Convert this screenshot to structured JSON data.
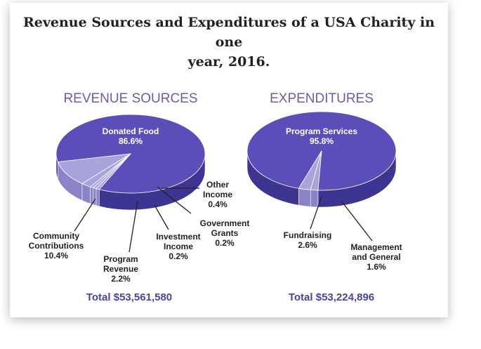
{
  "title_line1": "Revenue Sources and Expenditures of a USA Charity in one",
  "title_line2": "year, 2016.",
  "chart_data": [
    {
      "type": "pie",
      "title": "REVENUE SOURCES",
      "total": "Total $53,561,580",
      "slices": [
        {
          "name_lines": [
            "Donated Food"
          ],
          "value_text": "86.6%",
          "value": 86.6
        },
        {
          "name_lines": [
            "Community",
            "Contributions"
          ],
          "value_text": "10.4%",
          "value": 10.4
        },
        {
          "name_lines": [
            "Program",
            "Revenue"
          ],
          "value_text": "2.2%",
          "value": 2.2
        },
        {
          "name_lines": [
            "Investment",
            "Income"
          ],
          "value_text": "0.2%",
          "value": 0.2
        },
        {
          "name_lines": [
            "Government",
            "Grants"
          ],
          "value_text": "0.2%",
          "value": 0.2
        },
        {
          "name_lines": [
            "Other",
            "Income"
          ],
          "value_text": "0.4%",
          "value": 0.4
        }
      ]
    },
    {
      "type": "pie",
      "title": "EXPENDITURES",
      "total": "Total $53,224,896",
      "slices": [
        {
          "name_lines": [
            "Program Services"
          ],
          "value_text": "95.8%",
          "value": 95.8
        },
        {
          "name_lines": [
            "Fundraising"
          ],
          "value_text": "2.6%",
          "value": 2.6
        },
        {
          "name_lines": [
            "Management",
            "and General"
          ],
          "value_text": "1.6%",
          "value": 1.6
        }
      ]
    }
  ],
  "colors": {
    "main_slice": "#5a4fb8",
    "main_side": "#3d3592",
    "light_slice": "#a9a3dc",
    "light_side": "#8a83c8",
    "heading": "#6a5cae",
    "total": "#4a44a0"
  }
}
